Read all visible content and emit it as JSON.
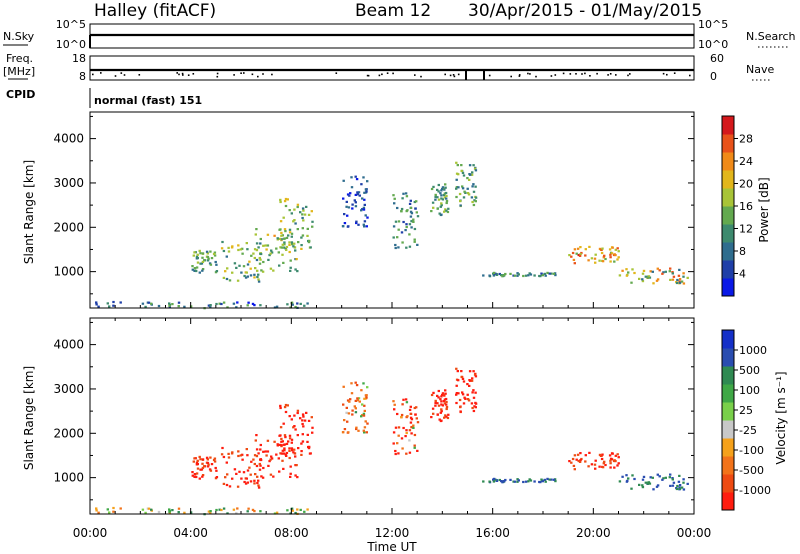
{
  "header": {
    "station": "Halley (fitACF)",
    "beam": "Beam 12",
    "dates": "30/Apr/2015 - 01/May/2015"
  },
  "strips": {
    "nsky_label": "N.Sky",
    "nsky_ticks": [
      "10^5",
      "10^0"
    ],
    "nsearch_label": "N.Search",
    "freq_label": "Freq.",
    "freq_unit": "[MHz]",
    "freq_ticks": [
      "18",
      "8"
    ],
    "nave_label": "Nave",
    "nave_ticks": [
      "60",
      "0"
    ],
    "cpid_label": "CPID",
    "cpid_value": "normal (fast) 151"
  },
  "colors": {
    "power_scale": [
      "#0a19e6",
      "#1f3fa8",
      "#2f6d8e",
      "#3d8a6e",
      "#63a94f",
      "#a8c437",
      "#e2b61b",
      "#f08a18",
      "#e8521a",
      "#d4181c"
    ],
    "velocity_scale": [
      "#ff1c0f",
      "#ee4a12",
      "#f2731a",
      "#f5a11b",
      "#c8c8c8",
      "#79d04a",
      "#3fa846",
      "#2f8a52",
      "#2a4db0",
      "#1530c8"
    ]
  },
  "chart_data": [
    {
      "type": "heatmap",
      "name": "power",
      "ylabel": "Slant Range [km]",
      "yticks": [
        1000,
        2000,
        3000,
        4000
      ],
      "ylim": [
        180,
        4600
      ],
      "colorbar_label": "Power [dB]",
      "colorbar_ticks": [
        "4",
        "8",
        "12",
        "16",
        "20",
        "24",
        "28"
      ],
      "patches": [
        {
          "x": [
            0.2,
            9.0
          ],
          "y": [
            200,
            340
          ],
          "v": [
            4,
            16
          ]
        },
        {
          "x": [
            4.0,
            5.0
          ],
          "y": [
            1000,
            1500
          ],
          "v": [
            8,
            18
          ]
        },
        {
          "x": [
            5.2,
            6.8
          ],
          "y": [
            800,
            1700
          ],
          "v": [
            8,
            22
          ]
        },
        {
          "x": [
            6.5,
            8.2
          ],
          "y": [
            1000,
            2000
          ],
          "v": [
            10,
            22
          ]
        },
        {
          "x": [
            7.5,
            8.8
          ],
          "y": [
            1500,
            2700
          ],
          "v": [
            10,
            20
          ]
        },
        {
          "x": [
            10.0,
            11.0
          ],
          "y": [
            2000,
            3200
          ],
          "v": [
            4,
            10
          ]
        },
        {
          "x": [
            12.0,
            13.0
          ],
          "y": [
            1500,
            2800
          ],
          "v": [
            6,
            16
          ]
        },
        {
          "x": [
            13.5,
            14.2
          ],
          "y": [
            2300,
            3000
          ],
          "v": [
            8,
            18
          ]
        },
        {
          "x": [
            14.5,
            15.3
          ],
          "y": [
            2500,
            3500
          ],
          "v": [
            8,
            18
          ]
        },
        {
          "x": [
            15.5,
            18.5
          ],
          "y": [
            920,
            1000
          ],
          "v": [
            6,
            16
          ]
        },
        {
          "x": [
            19.0,
            21.0
          ],
          "y": [
            1200,
            1600
          ],
          "v": [
            14,
            28
          ]
        },
        {
          "x": [
            21.0,
            23.8
          ],
          "y": [
            750,
            1100
          ],
          "v": [
            8,
            26
          ]
        }
      ]
    },
    {
      "type": "heatmap",
      "name": "velocity",
      "ylabel": "Slant Range [km]",
      "yticks": [
        1000,
        2000,
        3000,
        4000
      ],
      "ylim": [
        180,
        4600
      ],
      "colorbar_label": "Velocity [m s⁻¹]",
      "colorbar_ticks": [
        "-1000",
        "-500",
        "-100",
        "-25",
        "25",
        "100",
        "500",
        "1000"
      ],
      "xlabel": "Time UT",
      "xticks": [
        "00:00",
        "04:00",
        "08:00",
        "12:00",
        "16:00",
        "20:00",
        "00:00"
      ],
      "xlim": [
        0,
        24
      ],
      "patches": [
        {
          "x": [
            0.2,
            9.0
          ],
          "y": [
            200,
            340
          ],
          "v": [
            -25,
            25
          ]
        },
        {
          "x": [
            4.0,
            5.0
          ],
          "y": [
            1000,
            1500
          ],
          "v": [
            -500,
            -100
          ]
        },
        {
          "x": [
            5.2,
            6.8
          ],
          "y": [
            800,
            1700
          ],
          "v": [
            -500,
            -100
          ]
        },
        {
          "x": [
            6.5,
            8.2
          ],
          "y": [
            1000,
            2000
          ],
          "v": [
            -500,
            -100
          ]
        },
        {
          "x": [
            7.5,
            8.8
          ],
          "y": [
            1500,
            2700
          ],
          "v": [
            -1000,
            -100
          ]
        },
        {
          "x": [
            10.0,
            11.0
          ],
          "y": [
            2000,
            3200
          ],
          "v": [
            -100,
            25
          ]
        },
        {
          "x": [
            12.0,
            13.0
          ],
          "y": [
            1500,
            2800
          ],
          "v": [
            -500,
            25
          ]
        },
        {
          "x": [
            13.5,
            14.2
          ],
          "y": [
            2300,
            3000
          ],
          "v": [
            -500,
            -100
          ]
        },
        {
          "x": [
            14.5,
            15.3
          ],
          "y": [
            2500,
            3500
          ],
          "v": [
            -1000,
            -100
          ]
        },
        {
          "x": [
            15.5,
            18.5
          ],
          "y": [
            920,
            1000
          ],
          "v": [
            25,
            100
          ]
        },
        {
          "x": [
            19.0,
            21.0
          ],
          "y": [
            1200,
            1600
          ],
          "v": [
            -500,
            -100
          ]
        },
        {
          "x": [
            21.0,
            23.8
          ],
          "y": [
            750,
            1100
          ],
          "v": [
            25,
            100
          ]
        }
      ]
    }
  ]
}
